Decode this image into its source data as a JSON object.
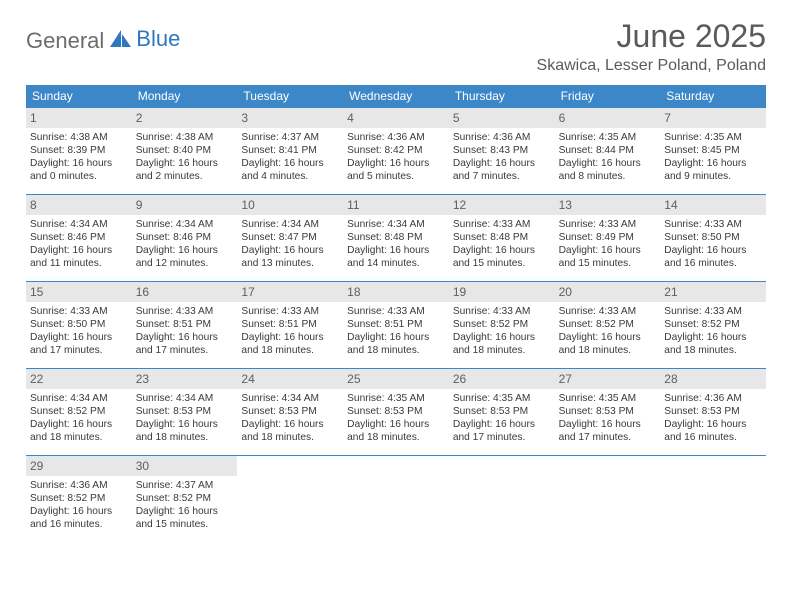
{
  "brand": {
    "part1": "General",
    "part2": "Blue"
  },
  "title": "June 2025",
  "location": "Skawica, Lesser Poland, Poland",
  "colors": {
    "header_bg": "#3b87c8",
    "header_text": "#ffffff",
    "daynum_bg": "#e7e7e7",
    "text": "#3a3a3a",
    "title_color": "#5a5a5a",
    "brand_gray": "#6c6c6c",
    "brand_blue": "#2f78bd",
    "row_divider": "#3b87c8"
  },
  "typography": {
    "title_fontsize": 32,
    "subtitle_fontsize": 16,
    "dow_fontsize": 12,
    "daynum_fontsize": 12,
    "body_fontsize": 10.2
  },
  "dow": [
    "Sunday",
    "Monday",
    "Tuesday",
    "Wednesday",
    "Thursday",
    "Friday",
    "Saturday"
  ],
  "days": [
    {
      "n": "1",
      "sunrise": "4:38 AM",
      "sunset": "8:39 PM",
      "daylight": "16 hours and 0 minutes."
    },
    {
      "n": "2",
      "sunrise": "4:38 AM",
      "sunset": "8:40 PM",
      "daylight": "16 hours and 2 minutes."
    },
    {
      "n": "3",
      "sunrise": "4:37 AM",
      "sunset": "8:41 PM",
      "daylight": "16 hours and 4 minutes."
    },
    {
      "n": "4",
      "sunrise": "4:36 AM",
      "sunset": "8:42 PM",
      "daylight": "16 hours and 5 minutes."
    },
    {
      "n": "5",
      "sunrise": "4:36 AM",
      "sunset": "8:43 PM",
      "daylight": "16 hours and 7 minutes."
    },
    {
      "n": "6",
      "sunrise": "4:35 AM",
      "sunset": "8:44 PM",
      "daylight": "16 hours and 8 minutes."
    },
    {
      "n": "7",
      "sunrise": "4:35 AM",
      "sunset": "8:45 PM",
      "daylight": "16 hours and 9 minutes."
    },
    {
      "n": "8",
      "sunrise": "4:34 AM",
      "sunset": "8:46 PM",
      "daylight": "16 hours and 11 minutes."
    },
    {
      "n": "9",
      "sunrise": "4:34 AM",
      "sunset": "8:46 PM",
      "daylight": "16 hours and 12 minutes."
    },
    {
      "n": "10",
      "sunrise": "4:34 AM",
      "sunset": "8:47 PM",
      "daylight": "16 hours and 13 minutes."
    },
    {
      "n": "11",
      "sunrise": "4:34 AM",
      "sunset": "8:48 PM",
      "daylight": "16 hours and 14 minutes."
    },
    {
      "n": "12",
      "sunrise": "4:33 AM",
      "sunset": "8:48 PM",
      "daylight": "16 hours and 15 minutes."
    },
    {
      "n": "13",
      "sunrise": "4:33 AM",
      "sunset": "8:49 PM",
      "daylight": "16 hours and 15 minutes."
    },
    {
      "n": "14",
      "sunrise": "4:33 AM",
      "sunset": "8:50 PM",
      "daylight": "16 hours and 16 minutes."
    },
    {
      "n": "15",
      "sunrise": "4:33 AM",
      "sunset": "8:50 PM",
      "daylight": "16 hours and 17 minutes."
    },
    {
      "n": "16",
      "sunrise": "4:33 AM",
      "sunset": "8:51 PM",
      "daylight": "16 hours and 17 minutes."
    },
    {
      "n": "17",
      "sunrise": "4:33 AM",
      "sunset": "8:51 PM",
      "daylight": "16 hours and 18 minutes."
    },
    {
      "n": "18",
      "sunrise": "4:33 AM",
      "sunset": "8:51 PM",
      "daylight": "16 hours and 18 minutes."
    },
    {
      "n": "19",
      "sunrise": "4:33 AM",
      "sunset": "8:52 PM",
      "daylight": "16 hours and 18 minutes."
    },
    {
      "n": "20",
      "sunrise": "4:33 AM",
      "sunset": "8:52 PM",
      "daylight": "16 hours and 18 minutes."
    },
    {
      "n": "21",
      "sunrise": "4:33 AM",
      "sunset": "8:52 PM",
      "daylight": "16 hours and 18 minutes."
    },
    {
      "n": "22",
      "sunrise": "4:34 AM",
      "sunset": "8:52 PM",
      "daylight": "16 hours and 18 minutes."
    },
    {
      "n": "23",
      "sunrise": "4:34 AM",
      "sunset": "8:53 PM",
      "daylight": "16 hours and 18 minutes."
    },
    {
      "n": "24",
      "sunrise": "4:34 AM",
      "sunset": "8:53 PM",
      "daylight": "16 hours and 18 minutes."
    },
    {
      "n": "25",
      "sunrise": "4:35 AM",
      "sunset": "8:53 PM",
      "daylight": "16 hours and 18 minutes."
    },
    {
      "n": "26",
      "sunrise": "4:35 AM",
      "sunset": "8:53 PM",
      "daylight": "16 hours and 17 minutes."
    },
    {
      "n": "27",
      "sunrise": "4:35 AM",
      "sunset": "8:53 PM",
      "daylight": "16 hours and 17 minutes."
    },
    {
      "n": "28",
      "sunrise": "4:36 AM",
      "sunset": "8:53 PM",
      "daylight": "16 hours and 16 minutes."
    },
    {
      "n": "29",
      "sunrise": "4:36 AM",
      "sunset": "8:52 PM",
      "daylight": "16 hours and 16 minutes."
    },
    {
      "n": "30",
      "sunrise": "4:37 AM",
      "sunset": "8:52 PM",
      "daylight": "16 hours and 15 minutes."
    }
  ],
  "labels": {
    "sunrise": "Sunrise:",
    "sunset": "Sunset:",
    "daylight": "Daylight:"
  }
}
